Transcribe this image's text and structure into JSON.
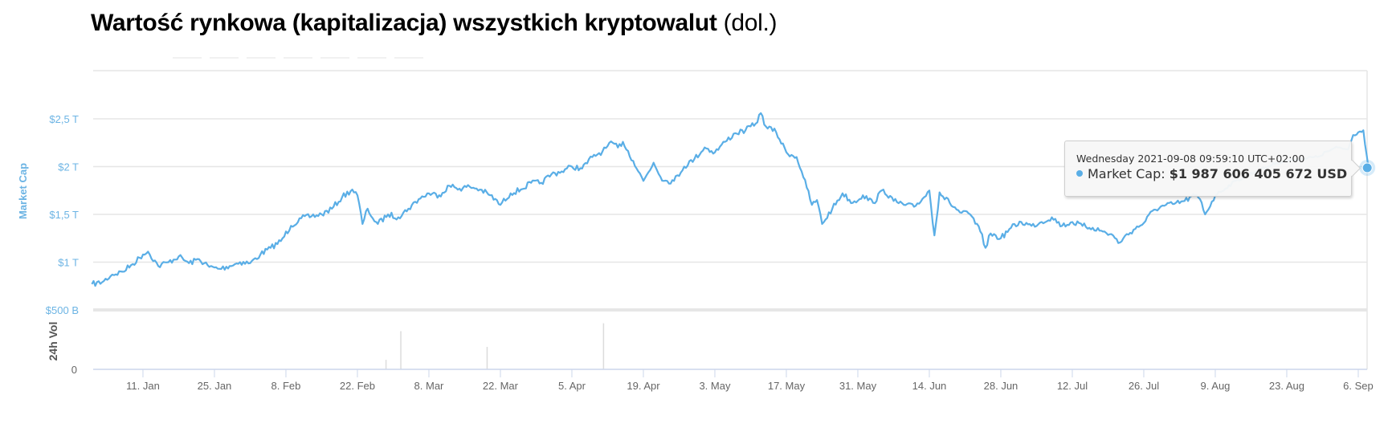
{
  "title": {
    "bold": "Wartość rynkowa (kapitalizacja) wszystkich kryptowalut",
    "light": " (dol.)"
  },
  "colors": {
    "series": "#5aaee6",
    "axis_label": "#6cb4e4",
    "grid": "#e6e6e6",
    "axis_line": "#ccd6eb",
    "volume": "#dcdcdc",
    "tick_text": "#666666"
  },
  "tooltip": {
    "timestamp": "Wednesday 2021-09-08 09:59:10 UTC+02:00",
    "label": "Market Cap:",
    "value": "$1 987 606 405 672 USD"
  },
  "chart_data": {
    "type": "line",
    "title": "Wartość rynkowa (kapitalizacja) wszystkich kryptowalut (dol.)",
    "ylabel": "Market Cap",
    "ylabel2": "24h Vol",
    "xlabel": "",
    "ylim": [
      500,
      2900
    ],
    "y_unit": "billion USD",
    "grid": true,
    "legend": "none",
    "y_ticks": [
      "$500 B",
      "$1 T",
      "$1,5 T",
      "$2 T",
      "$2,5 T"
    ],
    "y_tick_values": [
      500,
      1000,
      1500,
      2000,
      2500
    ],
    "volume_ticks": [
      "0"
    ],
    "x_ticks": [
      "11. Jan",
      "25. Jan",
      "8. Feb",
      "22. Feb",
      "8. Mar",
      "22. Mar",
      "5. Apr",
      "19. Apr",
      "3. May",
      "17. May",
      "31. May",
      "14. Jun",
      "28. Jun",
      "12. Jul",
      "26. Jul",
      "9. Aug",
      "23. Aug",
      "6. Sep"
    ],
    "x_tick_days": [
      10,
      24,
      38,
      52,
      66,
      80,
      94,
      108,
      122,
      136,
      150,
      164,
      178,
      192,
      206,
      220,
      234,
      248
    ],
    "series": [
      {
        "name": "Market Cap",
        "x_day_of_year": [
          0,
          2,
          4,
          6,
          8,
          10,
          11,
          13,
          15,
          17,
          19,
          21,
          23,
          25,
          27,
          29,
          31,
          33,
          35,
          37,
          39,
          41,
          43,
          45,
          47,
          49,
          51,
          52,
          53,
          54,
          55,
          56,
          58,
          60,
          62,
          64,
          66,
          68,
          70,
          72,
          74,
          76,
          78,
          80,
          82,
          84,
          86,
          88,
          90,
          92,
          94,
          96,
          98,
          100,
          102,
          103,
          104,
          106,
          108,
          110,
          112,
          114,
          116,
          118,
          120,
          122,
          124,
          126,
          128,
          130,
          131,
          132,
          134,
          136,
          138,
          139,
          140,
          141,
          142,
          143,
          145,
          147,
          149,
          151,
          153,
          155,
          157,
          159,
          161,
          163,
          164,
          165,
          166,
          168,
          170,
          172,
          174,
          175,
          176,
          178,
          180,
          182,
          184,
          186,
          188,
          190,
          192,
          194,
          196,
          198,
          200,
          201,
          202,
          204,
          206,
          208,
          210,
          212,
          214,
          216,
          217,
          218,
          220
        ],
        "values": [
          770,
          790,
          870,
          900,
          980,
          1080,
          1110,
          960,
          1000,
          1060,
          990,
          1030,
          950,
          930,
          960,
          1000,
          990,
          1080,
          1150,
          1220,
          1380,
          1460,
          1480,
          1500,
          1560,
          1680,
          1760,
          1700,
          1400,
          1560,
          1460,
          1400,
          1500,
          1470,
          1560,
          1660,
          1720,
          1700,
          1800,
          1770,
          1790,
          1760,
          1700,
          1600,
          1720,
          1760,
          1830,
          1830,
          1920,
          1950,
          2000,
          1980,
          2100,
          2160,
          2250,
          2200,
          2260,
          2060,
          1850,
          2040,
          1850,
          1850,
          2000,
          2080,
          2200,
          2150,
          2260,
          2350,
          2380,
          2450,
          2560,
          2420,
          2360,
          2150,
          2100,
          1950,
          1780,
          1600,
          1650,
          1400,
          1560,
          1720,
          1620,
          1700,
          1620,
          1760,
          1640,
          1600,
          1580,
          1680,
          1750,
          1280,
          1730,
          1620,
          1520,
          1500,
          1320,
          1150,
          1300,
          1250,
          1360,
          1420,
          1380,
          1420,
          1470,
          1380,
          1420,
          1380,
          1360,
          1320,
          1280,
          1200,
          1250,
          1340,
          1410,
          1550,
          1590,
          1610,
          1640,
          1700,
          1660,
          1500,
          1700
        ]
      },
      {
        "name": "Market Cap (right segment)",
        "x_day_of_year": [
          220,
          224,
          228,
          232,
          236,
          240,
          242,
          244,
          246,
          247,
          248,
          249,
          250
        ],
        "values": [
          1700,
          1850,
          1950,
          2040,
          2080,
          2100,
          2160,
          2200,
          2180,
          2330,
          2360,
          2380,
          1988
        ]
      },
      {
        "name": "24h Vol",
        "spikes_x_day": [
          57.6,
          60.5,
          77.4,
          100.2
        ],
        "spikes_height_frac": [
          0.17,
          0.68,
          0.4,
          0.82
        ]
      }
    ],
    "highlight_point": {
      "x_day_of_year": 250,
      "value": 1987.6,
      "label": "2021-09-08"
    }
  }
}
